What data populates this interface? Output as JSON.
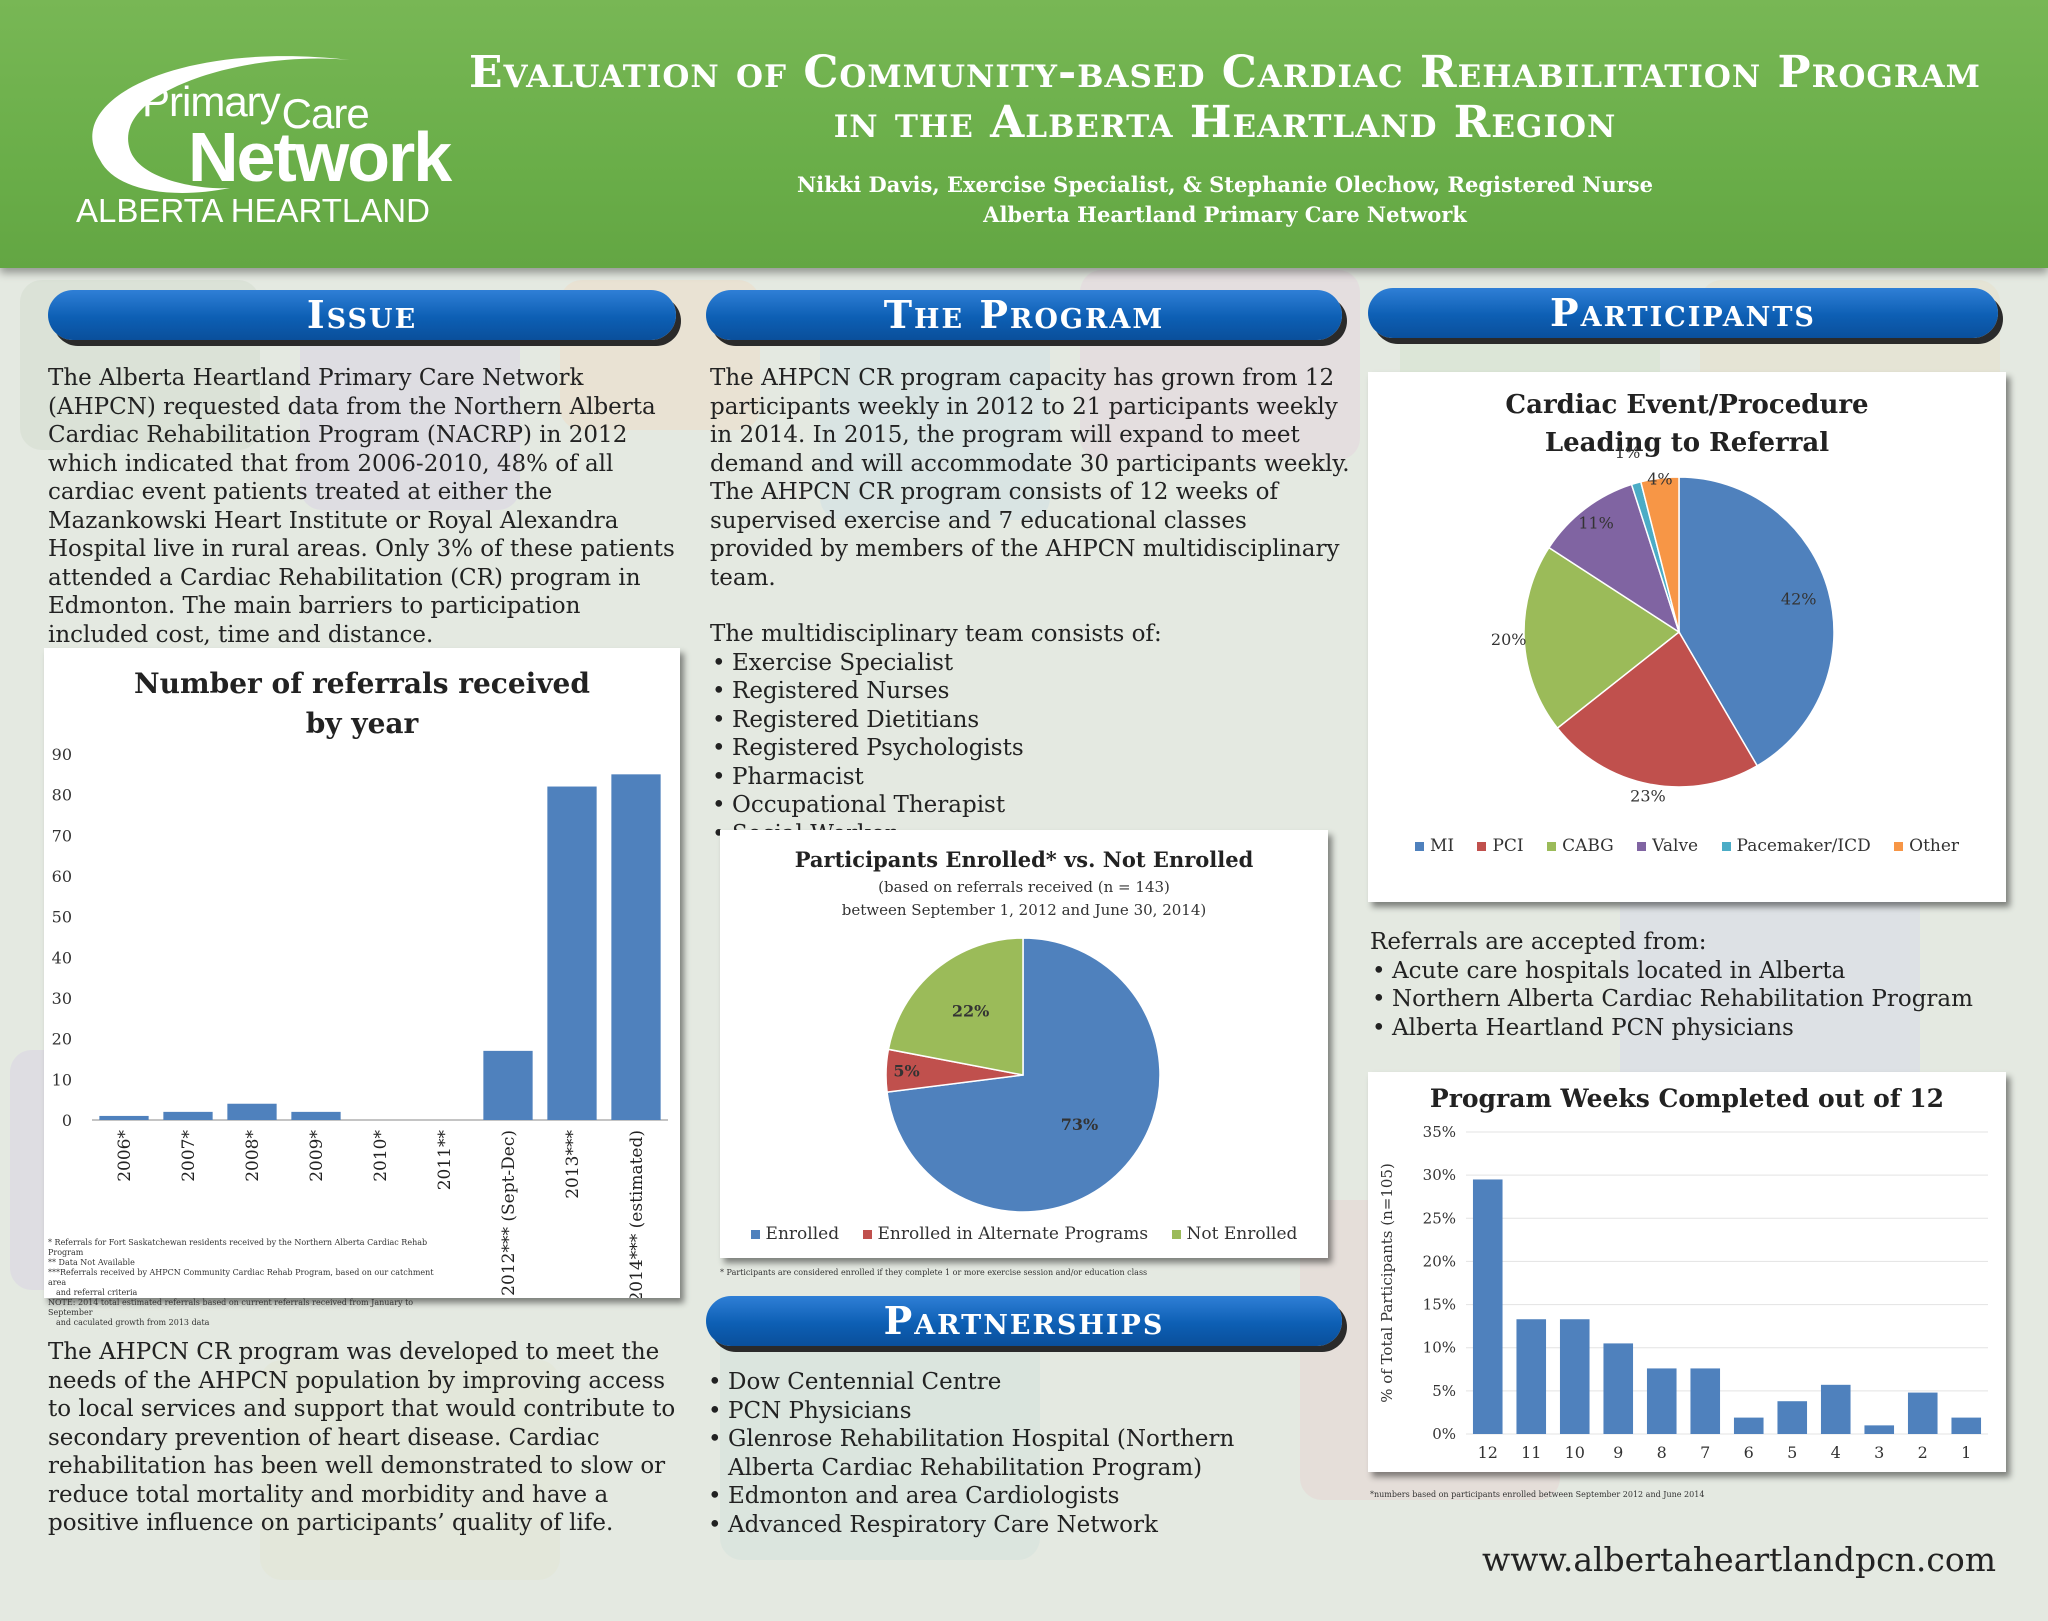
{
  "header": {
    "logo": {
      "line1": "Primary",
      "line1b": "Care",
      "line2": "Network",
      "line3": "ALBERTA HEARTLAND"
    },
    "title_line1": "Evaluation of Community-based Cardiac Rehabilitation Program",
    "title_line2": "in the Alberta Heartland Region",
    "authors": "Nikki Davis, Exercise Specialist, & Stephanie Olechow, Registered Nurse",
    "organization": "Alberta Heartland Primary Care Network"
  },
  "issue": {
    "heading": "Issue",
    "paragraph1": "The Alberta Heartland Primary Care Network (AHPCN) requested data from the Northern Alberta Cardiac Rehabilitation Program (NACRP) in 2012 which indicated that from 2006-2010, 48% of all cardiac event patients treated at either the Mazankowski Heart Institute or Royal Alexandra Hospital live in rural areas. Only 3% of these patients attended a Cardiac Rehabilitation (CR) program in Edmonton. The main barriers to participation included cost, time and distance.",
    "paragraph2": "The AHPCN CR program was developed to meet the needs of the AHPCN population by improving access to local services and support that would contribute to secondary prevention of heart disease. Cardiac rehabilitation has been well demonstrated to slow or reduce total mortality and morbidity and have a positive influence on participants’ quality of life.",
    "footnote1": "* Referrals for Fort Saskatchewan residents received by the Northern Alberta Cardiac Rehab Program",
    "footnote2": "** Data Not Available",
    "footnote3": "***Referrals received by AHPCN Community Cardiac Rehab Program, based on our catchment area",
    "footnote3b": "and referral criteria",
    "footnote4": "NOTE: 2014 total estimated referrals based on current referrals received from January to September",
    "footnote4b": "and caculated growth from 2013 data"
  },
  "program": {
    "heading": "The Program",
    "paragraph1": "The AHPCN CR program capacity has grown from 12 participants weekly in 2012 to 21 participants weekly in 2014. In 2015, the program will expand to meet demand and will accommodate 30 participants weekly.  The AHPCN CR program consists of 12 weeks of supervised exercise and 7 educational classes provided by members of the AHPCN multidisciplinary team.",
    "team_intro": "The multidisciplinary team consists of:",
    "team": [
      "Exercise Specialist",
      "Registered Nurses",
      "Registered Dietitians",
      "Registered Psychologists",
      "Pharmacist",
      "Occupational Therapist",
      "Social Worker"
    ],
    "enroll_footnote": "* Participants are considered enrolled if they complete 1 or more exercise session and/or education class"
  },
  "partnerships": {
    "heading": "Partnerships",
    "items": [
      "Dow Centennial Centre",
      "PCN Physicians",
      "Glenrose Rehabilitation Hospital (Northern Alberta Cardiac Rehabilitation Program)",
      "Edmonton and area Cardiologists",
      "Advanced Respiratory Care Network"
    ]
  },
  "participants": {
    "heading": "Participants",
    "referrals_intro": "Referrals are accepted from:",
    "referrals": [
      "Acute care hospitals located in Alberta",
      "Northern Alberta Cardiac Rehabilitation Program",
      "Alberta Heartland PCN physicians"
    ],
    "weeks_footnote": "*numbers based on participants enrolled between September 2012 and June 2014"
  },
  "footer": {
    "url": "www.albertaheartlandpcn.com"
  },
  "chart_data": [
    {
      "id": "referrals",
      "type": "bar",
      "title": "Number of referrals received by year",
      "title_line1": "Number of referrals received",
      "title_line2": "by year",
      "categories": [
        "2006*",
        "2007*",
        "2008*",
        "2009*",
        "2010*",
        "2011**",
        "2012*** (Sept-Dec)",
        "2013***",
        "2014*** (estimated)"
      ],
      "values": [
        1,
        2,
        4,
        2,
        0,
        0,
        17,
        82,
        85
      ],
      "ylim": [
        0,
        90
      ],
      "yticks": [
        0,
        10,
        20,
        30,
        40,
        50,
        60,
        70,
        80,
        90
      ],
      "color": "#4f81bd"
    },
    {
      "id": "enrollment",
      "type": "pie",
      "title": "Participants Enrolled* vs. Not Enrolled",
      "subtitle1": "(based on referrals received (n = 143)",
      "subtitle2": "between September 1, 2012 and June 30, 2014)",
      "labels": [
        "Enrolled",
        "Enrolled in Alternate Programs",
        "Not Enrolled"
      ],
      "values": [
        73,
        5,
        22
      ],
      "value_labels": [
        "73%",
        "5%",
        "22%"
      ],
      "colors": [
        "#4f81bd",
        "#c0504d",
        "#9bbb59"
      ]
    },
    {
      "id": "event",
      "type": "pie",
      "title": "Cardiac Event/Procedure Leading to Referral",
      "title_line1": "Cardiac Event/Procedure",
      "title_line2": "Leading to Referral",
      "labels": [
        "MI",
        "PCI",
        "CABG",
        "Valve",
        "Pacemaker/ICD",
        "Other"
      ],
      "values": [
        42,
        23,
        20,
        11,
        1,
        4
      ],
      "value_labels": [
        "42%",
        "23%",
        "20%",
        "11%",
        "1%",
        "4%"
      ],
      "colors": [
        "#4f81bd",
        "#c0504d",
        "#9bbb59",
        "#8064a2",
        "#4bacc6",
        "#f79646"
      ]
    },
    {
      "id": "weeks",
      "type": "bar",
      "title": "Program Weeks Completed out of 12",
      "ylabel": "% of Total Participants (n=105)",
      "categories": [
        "12",
        "11",
        "10",
        "9",
        "8",
        "7",
        "6",
        "5",
        "4",
        "3",
        "2",
        "1"
      ],
      "values": [
        29.5,
        13.3,
        13.3,
        10.5,
        7.6,
        7.6,
        1.9,
        3.8,
        5.7,
        1.0,
        4.8,
        1.9
      ],
      "ylim": [
        0,
        35
      ],
      "yticks": [
        "0%",
        "5%",
        "10%",
        "15%",
        "20%",
        "25%",
        "30%",
        "35%"
      ],
      "color": "#4f81bd"
    }
  ]
}
